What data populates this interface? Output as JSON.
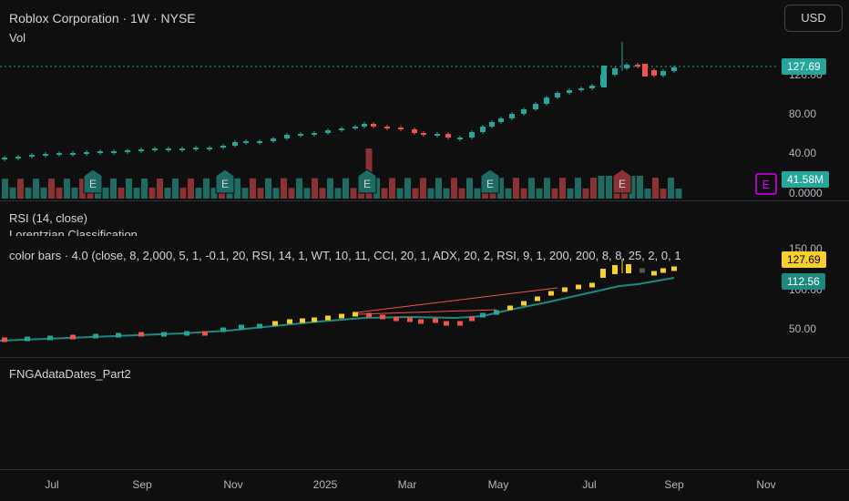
{
  "header": {
    "symbol_title": "Roblox Corporation · 1W · NYSE",
    "vol_label": "Vol",
    "currency_button": "USD"
  },
  "main_pane": {
    "last_price": "127.69",
    "volume_value": "41.58M",
    "y_ticks": [
      "120.00",
      "80.00",
      "40.00",
      "0.0000"
    ],
    "earnings_marker": "E"
  },
  "rsi_pane": {
    "label": "RSI (14, close)",
    "sub_label": "Lorentzian Classification"
  },
  "colorbars_pane": {
    "label": "color bars · 4.0 (close, 8, 2,000, 5, 1, -0.1, 20, RSI, 14, 1, WT, 10, 11, CCI, 20, 1, ADX, 20, 2, RSI, 9, 1, 200, 200, 8, 8, 25, 2, 0, 1",
    "price_tag": "127.69",
    "ma_tag": "112.56",
    "y_ticks": [
      "150.00",
      "100.00",
      "50.00"
    ]
  },
  "fng_pane": {
    "label": "FNGAdataDates_Part2"
  },
  "time_axis": {
    "labels": [
      "Jul",
      "Sep",
      "Nov",
      "2025",
      "Mar",
      "May",
      "Jul",
      "Sep",
      "Nov"
    ]
  },
  "colors": {
    "up": "#26a69a",
    "down": "#ef5350",
    "highlight": "#f7d02c",
    "volume_up": "#1e6b63",
    "volume_down": "#8b3232",
    "accent_purple": "#d500f9"
  }
}
